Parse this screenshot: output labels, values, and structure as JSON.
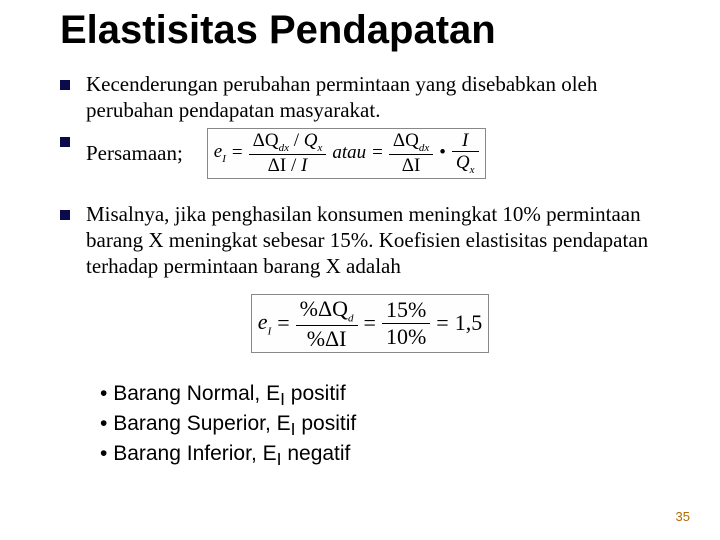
{
  "title": "Elastisitas Pendapatan",
  "bullet1": "Kecenderungan perubahan permintaan yang disebabkan oleh perubahan pendapatan masyarakat.",
  "bullet2_label": "Persamaan;",
  "formula1": {
    "lhs_var": "e",
    "lhs_sub": "I",
    "num1_a": "ΔQ",
    "num1_a_sub": "dx",
    "num1_b": "Q",
    "num1_b_sub": "x",
    "den1_a": "ΔI",
    "den1_b": "I",
    "mid": "atau",
    "num2": "ΔQ",
    "num2_sub": "dx",
    "den2": "ΔI",
    "bullet": "•",
    "num3": "I",
    "den3": "Q",
    "den3_sub": "x"
  },
  "bullet3": "Misalnya, jika penghasilan konsumen meningkat 10% permintaan barang X meningkat sebesar 15%. Koefisien elastisitas pendapatan terhadap permintaan barang X adalah",
  "formula2": {
    "lhs_var": "e",
    "lhs_sub": "I",
    "num1": "%ΔQ",
    "num1_sub": "d",
    "den1": "%ΔI",
    "num2": "15%",
    "den2": "10%",
    "rhs": "1,5"
  },
  "dots": {
    "a_pre": "Barang Normal, E",
    "a_sub": "I",
    "a_post": " positif",
    "b_pre": "Barang Superior, E",
    "b_sub": "I",
    "b_post": " positif",
    "c_pre": "Barang Inferior, E",
    "c_sub": "I",
    "c_post": " negatif"
  },
  "page": "35",
  "colors": {
    "bullet_square": "#0b0b4b",
    "page_num": "#b36a00"
  }
}
